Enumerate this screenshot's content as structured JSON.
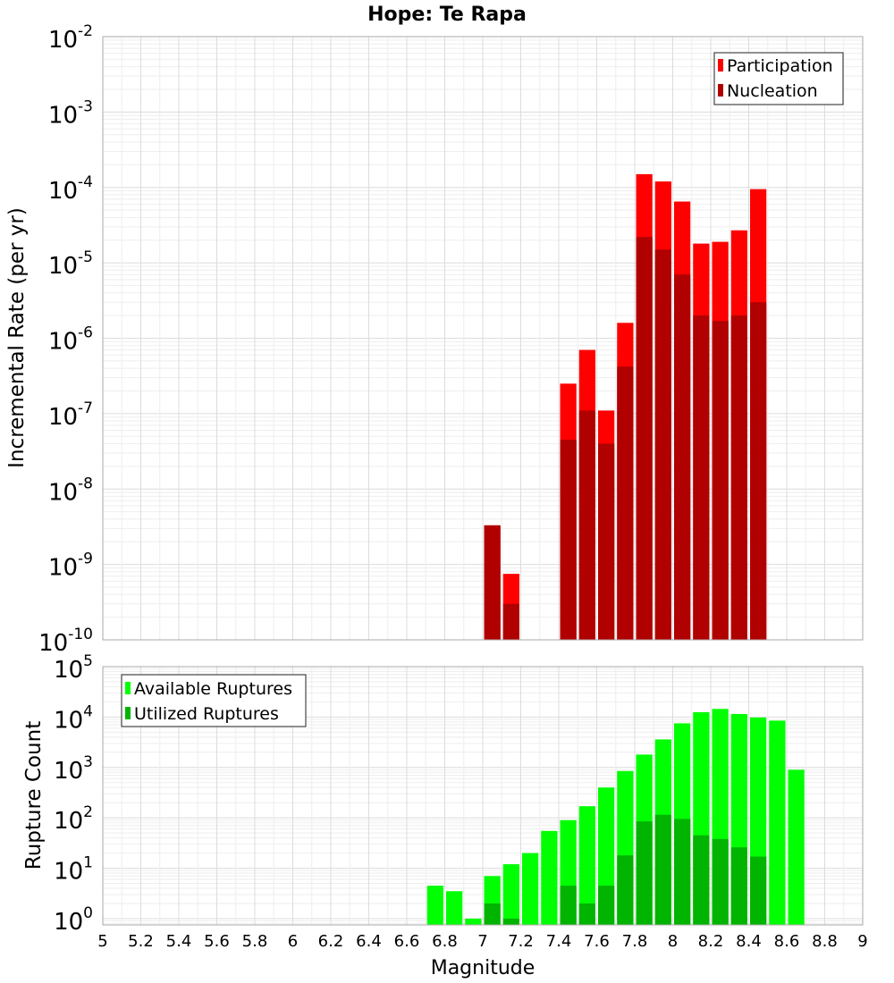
{
  "chart_data": [
    {
      "type": "bar",
      "title": "Hope: Te Rapa",
      "xlabel": "",
      "ylabel": "Incremental Rate (per yr)",
      "xlim": [
        5,
        9
      ],
      "ylim": [
        1e-10,
        0.01
      ],
      "yscale": "log",
      "bar_width": 0.1,
      "grid": true,
      "legend_position": "top-right",
      "series": [
        {
          "name": "Participation",
          "color": "#ff0000",
          "x": [
            7.05,
            7.15,
            7.45,
            7.55,
            7.65,
            7.75,
            7.85,
            7.95,
            8.05,
            8.15,
            8.25,
            8.35,
            8.45
          ],
          "values": [
            3.3e-09,
            7.5e-10,
            2.5e-07,
            7e-07,
            1.1e-07,
            1.6e-06,
            0.00015,
            0.00012,
            6.5e-05,
            1.8e-05,
            1.9e-05,
            2.7e-05,
            9.5e-05
          ]
        },
        {
          "name": "Nucleation",
          "color": "#b00000",
          "x": [
            7.05,
            7.15,
            7.45,
            7.55,
            7.65,
            7.75,
            7.85,
            7.95,
            8.05,
            8.15,
            8.25,
            8.35,
            8.45
          ],
          "values": [
            3.3e-09,
            3e-10,
            4.5e-08,
            1.1e-07,
            4e-08,
            4.2e-07,
            2.2e-05,
            1.5e-05,
            7e-06,
            2e-06,
            1.7e-06,
            2e-06,
            3e-06
          ]
        }
      ]
    },
    {
      "type": "bar",
      "title": "",
      "xlabel": "Magnitude",
      "ylabel": "Rupture Count",
      "xlim": [
        5,
        9
      ],
      "ylim": [
        0.75,
        100000
      ],
      "yscale": "log",
      "bar_width": 0.1,
      "grid": true,
      "legend_position": "top-left",
      "x_ticks": [
        "5",
        "5.2",
        "5.4",
        "5.6",
        "5.8",
        "6",
        "6.2",
        "6.4",
        "6.6",
        "6.8",
        "7",
        "7.2",
        "7.4",
        "7.6",
        "7.8",
        "8",
        "8.2",
        "8.4",
        "8.6",
        "8.8",
        "9"
      ],
      "series": [
        {
          "name": "Available Ruptures",
          "color": "#00ff00",
          "x": [
            6.75,
            6.85,
            6.95,
            7.05,
            7.15,
            7.25,
            7.35,
            7.45,
            7.55,
            7.65,
            7.75,
            7.85,
            7.95,
            8.05,
            8.15,
            8.25,
            8.35,
            8.45,
            8.55,
            8.65
          ],
          "values": [
            4.5,
            3.5,
            1,
            7,
            12,
            20,
            55,
            90,
            170,
            400,
            850,
            1800,
            3600,
            7500,
            12500,
            14500,
            11500,
            9800,
            8500,
            900
          ]
        },
        {
          "name": "Utilized Ruptures",
          "color": "#00b400",
          "x": [
            7.05,
            7.15,
            7.45,
            7.55,
            7.65,
            7.75,
            7.85,
            7.95,
            8.05,
            8.15,
            8.25,
            8.35,
            8.45
          ],
          "values": [
            2,
            1,
            4.5,
            2,
            4.5,
            18,
            85,
            115,
            95,
            45,
            38,
            26,
            17
          ]
        }
      ]
    }
  ]
}
